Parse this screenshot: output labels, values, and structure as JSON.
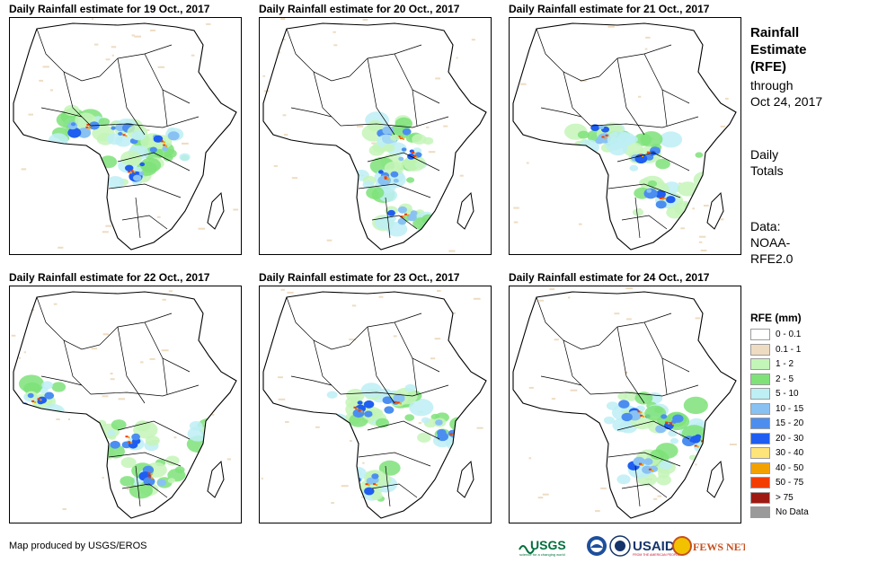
{
  "panels": [
    {
      "title": "Daily Rainfall estimate for 19 Oct., 2017",
      "map_icon": "africa-rainfall-map"
    },
    {
      "title": "Daily Rainfall estimate for 20 Oct., 2017",
      "map_icon": "africa-rainfall-map"
    },
    {
      "title": "Daily Rainfall estimate for 21 Oct., 2017",
      "map_icon": "africa-rainfall-map"
    },
    {
      "title": "Daily Rainfall estimate for 22 Oct., 2017",
      "map_icon": "africa-rainfall-map"
    },
    {
      "title": "Daily Rainfall estimate for 23 Oct., 2017",
      "map_icon": "africa-rainfall-map"
    },
    {
      "title": "Daily Rainfall estimate for 24 Oct., 2017",
      "map_icon": "africa-rainfall-map"
    }
  ],
  "sidebar": {
    "heading_lines": [
      "Rainfall",
      "Estimate",
      "(RFE)"
    ],
    "through": "through",
    "date": "Oct 24, 2017",
    "totals_lines": [
      "Daily",
      "Totals"
    ],
    "data_lines": [
      "Data:",
      "NOAA-",
      "RFE2.0"
    ]
  },
  "legend": {
    "title": "RFE (mm)",
    "items": [
      {
        "label": "0 - 0.1",
        "color": "#ffffff"
      },
      {
        "label": "0.1 - 1",
        "color": "#eedcc2"
      },
      {
        "label": "1 - 2",
        "color": "#c4f5b8"
      },
      {
        "label": "2 - 5",
        "color": "#7ee279"
      },
      {
        "label": "5 - 10",
        "color": "#bdeff5"
      },
      {
        "label": "10 - 15",
        "color": "#89c2f2"
      },
      {
        "label": "15 - 20",
        "color": "#4b8ef0"
      },
      {
        "label": "20 - 30",
        "color": "#1f5ef0"
      },
      {
        "label": "30 - 40",
        "color": "#ffe47a"
      },
      {
        "label": "40 - 50",
        "color": "#f2a200"
      },
      {
        "label": "50 - 75",
        "color": "#f23c00"
      },
      {
        "label": "> 75",
        "color": "#9e1a12"
      },
      {
        "label": "No Data",
        "color": "#9a9a9a"
      }
    ]
  },
  "credit": "Map produced by USGS/EROS",
  "logos": [
    {
      "name": "usgs-logo",
      "text": "USGS"
    },
    {
      "name": "noaa-logo",
      "text": "NOAA"
    },
    {
      "name": "usaid-seal-logo",
      "text": ""
    },
    {
      "name": "usaid-logo",
      "text": "USAID"
    },
    {
      "name": "fews-net-logo",
      "text": "FEWS NET"
    }
  ]
}
